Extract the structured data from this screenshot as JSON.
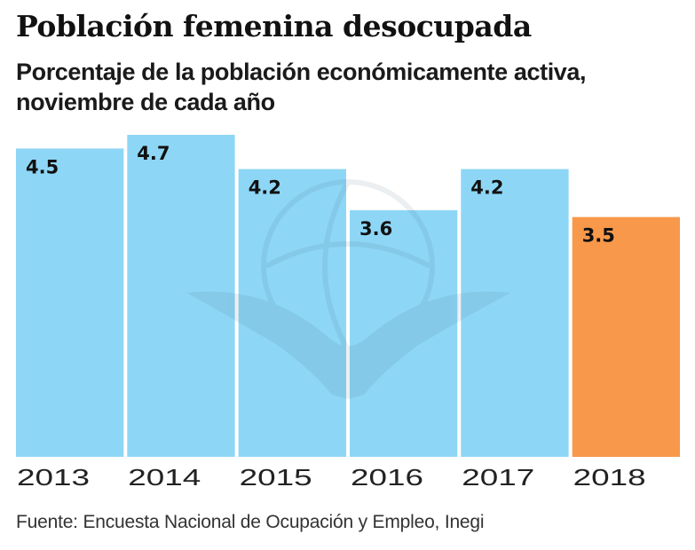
{
  "chart_data": {
    "type": "bar",
    "title": "Población femenina desocupada",
    "subtitle": "Porcentaje de la población económicamente activa, noviembre de cada año",
    "categories": [
      "2013",
      "2014",
      "2015",
      "2016",
      "2017",
      "2018"
    ],
    "values": [
      4.5,
      4.7,
      4.2,
      3.6,
      4.2,
      3.5
    ],
    "data_labels": [
      "4.5",
      "4.7",
      "4.2",
      "3.6",
      "4.2",
      "3.5"
    ],
    "bar_colors": [
      "#8ed6f6",
      "#8ed6f6",
      "#8ed6f6",
      "#8ed6f6",
      "#8ed6f6",
      "#f7984a"
    ],
    "highlight_category": "2018",
    "xlabel": "",
    "ylabel": "",
    "ylim": [
      0,
      4.7
    ],
    "grid": false,
    "legend": "none",
    "source": "Fuente: Encuesta Nacional de Ocupación y Empleo, Inegi"
  }
}
